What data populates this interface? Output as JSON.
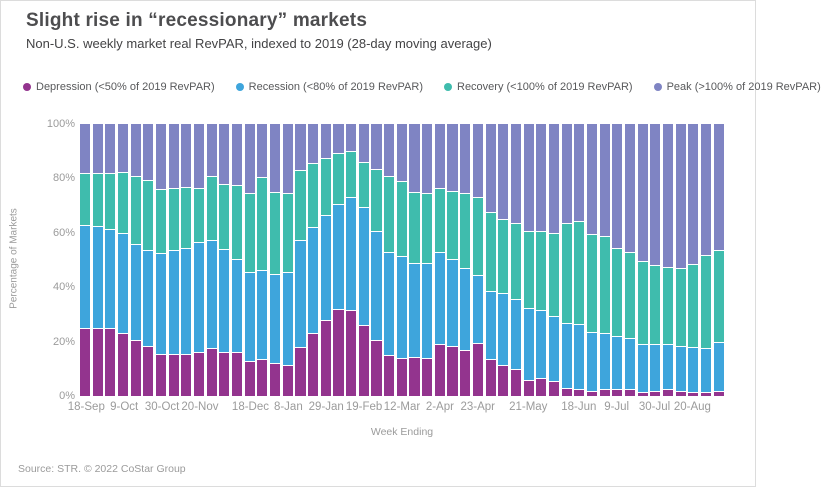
{
  "card": {
    "title": "Slight rise in “recessionary” markets",
    "subtitle": "Non-U.S. weekly market real RevPAR, indexed to 2019 (28-day moving average)",
    "footer": "Source: STR. © 2022 CoStar Group"
  },
  "legend": {
    "items": [
      {
        "label": "Depression (<50% of 2019 RevPAR)",
        "color": "#93348E"
      },
      {
        "label": "Recession (<80% of 2019 RevPAR)",
        "color": "#3EA5DC"
      },
      {
        "label": "Recovery (<100% of 2019 RevPAR)",
        "color": "#3FBCAD"
      },
      {
        "label": "Peak (>100% of 2019 RevPAR)",
        "color": "#7F84C3"
      }
    ]
  },
  "chart_data": {
    "type": "bar",
    "stacked": true,
    "stack_unit": "percent",
    "bar_count": 51,
    "xlabel": "Week Ending",
    "ylabel": "Percentage of Markets",
    "ylim": [
      0,
      100
    ],
    "grid": false,
    "legend_position": "top",
    "y_tick_labels": [
      "0%",
      "20%",
      "40%",
      "60%",
      "80%",
      "100%"
    ],
    "x_tick_labels": [
      {
        "label": "18-Sep",
        "bar_index": 0
      },
      {
        "label": "9-Oct",
        "bar_index": 3
      },
      {
        "label": "30-Oct",
        "bar_index": 6
      },
      {
        "label": "20-Nov",
        "bar_index": 9
      },
      {
        "label": "18-Dec",
        "bar_index": 13
      },
      {
        "label": "8-Jan",
        "bar_index": 16
      },
      {
        "label": "29-Jan",
        "bar_index": 19
      },
      {
        "label": "19-Feb",
        "bar_index": 22
      },
      {
        "label": "12-Mar",
        "bar_index": 25
      },
      {
        "label": "2-Apr",
        "bar_index": 28
      },
      {
        "label": "23-Apr",
        "bar_index": 31
      },
      {
        "label": "21-May",
        "bar_index": 35
      },
      {
        "label": "18-Jun",
        "bar_index": 39
      },
      {
        "label": "9-Jul",
        "bar_index": 42
      },
      {
        "label": "30-Jul",
        "bar_index": 45
      },
      {
        "label": "20-Aug",
        "bar_index": 48
      }
    ],
    "series": [
      {
        "name": "Depression (<50% of 2019 RevPAR)",
        "color": "#93348E",
        "values": [
          25,
          25,
          25,
          23,
          20.5,
          18.5,
          15.5,
          15.5,
          15.5,
          16,
          17.5,
          16,
          16,
          13,
          13.5,
          12,
          11.5,
          18,
          23,
          28,
          32,
          31.5,
          26,
          20.5,
          15,
          14,
          14.5,
          14,
          19,
          18.5,
          17,
          19.5,
          13.5,
          11.5,
          10,
          6,
          6.5,
          5.5,
          3,
          2.5,
          2,
          2.5,
          2.5,
          2.5,
          1.5,
          2,
          2.5,
          2,
          1.5,
          1.5,
          2
        ]
      },
      {
        "name": "Recession (<80% of 2019 RevPAR)",
        "color": "#3EA5DC",
        "values": [
          38,
          37.5,
          36.5,
          37,
          35.5,
          35,
          37,
          38,
          39,
          40.5,
          40,
          38,
          34.5,
          32.5,
          33,
          33,
          34,
          39.5,
          39,
          38.5,
          38.5,
          41.5,
          43.5,
          40,
          38,
          37.5,
          34.5,
          35,
          34,
          32,
          30,
          25,
          25,
          26.5,
          25.5,
          26.5,
          25,
          24,
          24,
          24,
          21.5,
          20.5,
          19.5,
          19,
          17.5,
          17,
          16.5,
          16.5,
          16.5,
          16,
          18
        ]
      },
      {
        "name": "Recovery (<100% of 2019 RevPAR)",
        "color": "#3FBCAD",
        "values": [
          19,
          19.5,
          20.5,
          22.5,
          25,
          26,
          23.5,
          23,
          22.5,
          20,
          23.5,
          24,
          27,
          29,
          34,
          30,
          29,
          25.5,
          23.5,
          21,
          19,
          17,
          16.5,
          23,
          28,
          27.5,
          26,
          25.5,
          23.5,
          25,
          27.5,
          28.5,
          29,
          27,
          28,
          28,
          29,
          30.5,
          36.5,
          38,
          36,
          36,
          32.5,
          31.5,
          30.5,
          29,
          28.5,
          28.5,
          30.5,
          34.5,
          33.5
        ]
      },
      {
        "name": "Peak (>100% of 2019 RevPAR)",
        "color": "#7F84C3",
        "values": [
          18,
          18,
          18,
          17.5,
          19,
          20.5,
          24,
          23.5,
          23,
          23.5,
          19,
          22,
          22.5,
          25.5,
          19.5,
          25,
          25.5,
          17,
          14.5,
          12.5,
          10.5,
          10,
          14,
          16.5,
          19,
          21,
          25,
          25.5,
          23.5,
          24.5,
          25.5,
          27,
          32.5,
          35,
          36.5,
          39.5,
          39.5,
          40,
          36.5,
          35.5,
          40.5,
          41,
          45.5,
          47,
          50.5,
          52,
          52.5,
          53,
          51.5,
          48,
          46.5
        ]
      }
    ]
  }
}
